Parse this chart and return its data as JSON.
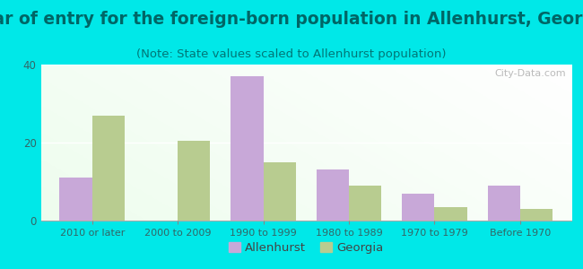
{
  "title": "Year of entry for the foreign-born population in Allenhurst, Georgia",
  "subtitle": "(Note: State values scaled to Allenhurst population)",
  "categories": [
    "2010 or later",
    "2000 to 2009",
    "1990 to 1999",
    "1980 to 1989",
    "1970 to 1979",
    "Before 1970"
  ],
  "allenhurst_values": [
    11,
    0,
    37,
    13,
    7,
    9
  ],
  "georgia_values": [
    27,
    20.5,
    15,
    9,
    3.5,
    3
  ],
  "allenhurst_color": "#c8a8d8",
  "georgia_color": "#b8cc90",
  "background_outer": "#00e8e8",
  "ylim": [
    0,
    40
  ],
  "yticks": [
    0,
    20,
    40
  ],
  "bar_width": 0.38,
  "title_fontsize": 13.5,
  "subtitle_fontsize": 9.5,
  "title_color": "#006666",
  "subtitle_color": "#007777",
  "watermark": "City-Data.com"
}
